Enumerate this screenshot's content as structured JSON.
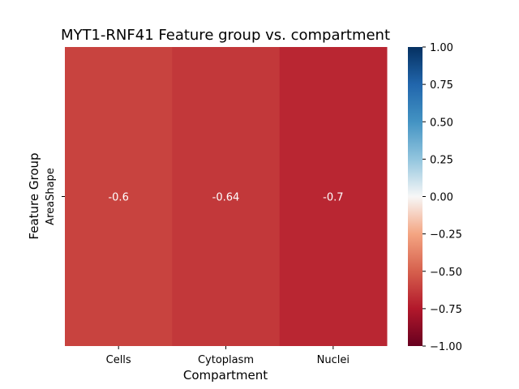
{
  "chart_data": {
    "type": "heatmap",
    "title": "MYT1-RNF41 Feature group  vs. compartment",
    "xlabel": "Compartment",
    "ylabel": "Feature Group",
    "x_categories": [
      "Cells",
      "Cytoplasm",
      "Nuclei"
    ],
    "y_categories": [
      "AreaShape"
    ],
    "values": [
      [
        -0.6,
        -0.64,
        -0.7
      ]
    ],
    "cell_labels": [
      [
        "-0.6",
        "-0.64",
        "-0.7"
      ]
    ],
    "vmin": -1.0,
    "vmax": 1.0,
    "colormap": "RdBu",
    "colorbar": {
      "ticks": [
        1.0,
        0.75,
        0.5,
        0.25,
        0.0,
        -0.25,
        -0.5,
        -0.75,
        -1.0
      ],
      "tick_labels": [
        "1.00",
        "0.75",
        "0.50",
        "0.25",
        "0.00",
        "−0.25",
        "−0.50",
        "−0.75",
        "−1.00"
      ]
    }
  }
}
